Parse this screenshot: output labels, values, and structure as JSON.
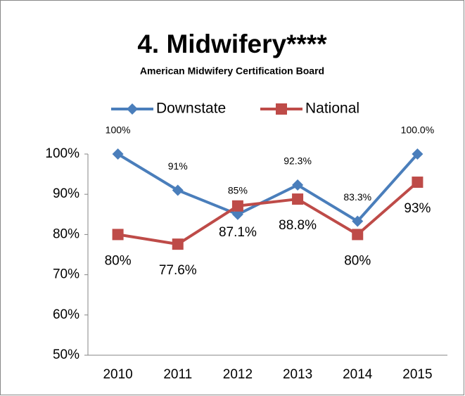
{
  "chart_data": {
    "type": "line",
    "title": "4. Midwifery****",
    "subtitle": "American Midwifery Certification Board",
    "categories": [
      "2010",
      "2011",
      "2012",
      "2013",
      "2014",
      "2015"
    ],
    "series": [
      {
        "name": "Downstate",
        "color": "#4a7ebb",
        "marker": "diamond",
        "values": [
          100,
          91,
          85,
          92.3,
          83.3,
          100
        ],
        "value_labels": [
          "100%",
          "91%",
          "85%",
          "92.3%",
          "83.3%",
          "100.0%"
        ]
      },
      {
        "name": "National",
        "color": "#be4b48",
        "marker": "square",
        "values": [
          80,
          77.6,
          87.1,
          88.8,
          80,
          93
        ],
        "value_labels": [
          "80%",
          "77.6%",
          "87.1%",
          "88.8%",
          "80%",
          "93%"
        ]
      }
    ],
    "ylim": [
      50,
      100
    ],
    "yticks": [
      {
        "value": 50,
        "label": "50%"
      },
      {
        "value": 60,
        "label": "60%"
      },
      {
        "value": 70,
        "label": "70%"
      },
      {
        "value": 80,
        "label": "80%"
      },
      {
        "value": 90,
        "label": "90%"
      },
      {
        "value": 100,
        "label": "100%"
      }
    ],
    "legend": "top"
  }
}
